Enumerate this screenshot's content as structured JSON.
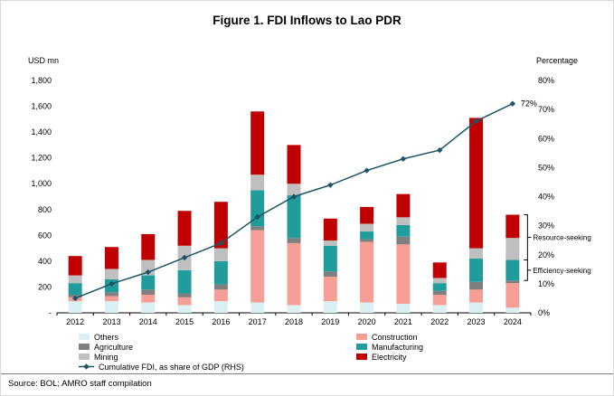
{
  "figure": {
    "title": "Figure 1. FDI Inflows to Lao PDR",
    "source": "Source: BOL; AMRO staff compilation"
  },
  "annotations": {
    "line_end_label": "72%",
    "brackets": [
      {
        "label": "Resource-seeking",
        "value_from": 410,
        "value_to": 760
      },
      {
        "label": "Efficiency-seeking",
        "value_from": 250,
        "value_to": 410
      }
    ]
  },
  "legend": {
    "columns": [
      {
        "items": [
          {
            "label": "Others"
          },
          {
            "label": "Agriculture"
          },
          {
            "label": "Mining"
          },
          {
            "label": "Cumulative FDI, as share of GDP (RHS)",
            "marker": "line"
          }
        ]
      },
      {
        "items": [
          {
            "label": "Construction"
          },
          {
            "label": "Manufacturing"
          },
          {
            "label": "Electricity"
          }
        ]
      }
    ]
  },
  "chart_data": {
    "type": "bar",
    "subtype": "stacked-bars-with-line",
    "title": "Figure 1. FDI Inflows to Lao PDR",
    "categories": [
      "2012",
      "2013",
      "2014",
      "2015",
      "2016",
      "2017",
      "2018",
      "2019",
      "2020",
      "2021",
      "2022",
      "2023",
      "2024"
    ],
    "series": [
      {
        "name": "Others",
        "color": "#daf0f2",
        "values": [
          90,
          90,
          80,
          60,
          90,
          80,
          60,
          90,
          80,
          70,
          60,
          80,
          40
        ]
      },
      {
        "name": "Construction",
        "color": "#f79e96",
        "values": [
          30,
          40,
          60,
          60,
          90,
          560,
          480,
          190,
          470,
          460,
          80,
          100,
          190
        ]
      },
      {
        "name": "Agriculture",
        "color": "#7f7f7f",
        "values": [
          20,
          30,
          40,
          30,
          40,
          30,
          40,
          40,
          20,
          60,
          30,
          60,
          20
        ]
      },
      {
        "name": "Manufacturing",
        "color": "#219c9c",
        "values": [
          90,
          100,
          110,
          180,
          180,
          280,
          330,
          200,
          60,
          90,
          60,
          180,
          160
        ]
      },
      {
        "name": "Mining",
        "color": "#bfbfbf",
        "values": [
          60,
          80,
          120,
          190,
          100,
          120,
          90,
          40,
          60,
          60,
          40,
          80,
          170
        ]
      },
      {
        "name": "Electricity",
        "color": "#c00000",
        "values": [
          150,
          170,
          200,
          270,
          360,
          490,
          300,
          170,
          130,
          180,
          120,
          1010,
          180
        ]
      }
    ],
    "line_series": {
      "name": "Cumulative FDI, as share of GDP (RHS)",
      "color": "#1d5566",
      "axis": "right",
      "values": [
        5,
        10,
        14,
        19,
        24,
        33,
        40,
        44,
        49,
        53,
        56,
        66,
        72
      ]
    },
    "left_axis": {
      "label": "USD mn",
      "min": 0,
      "max": 1800,
      "step": 200,
      "ticks": [
        "-",
        "200",
        "400",
        "600",
        "800",
        "1,000",
        "1,200",
        "1,400",
        "1,600",
        "1,800"
      ]
    },
    "right_axis": {
      "label": "Percentage",
      "min": 0,
      "max": 80,
      "step": 10,
      "ticks": [
        "0%",
        "10%",
        "20%",
        "30%",
        "40%",
        "50%",
        "60%",
        "70%",
        "80%"
      ]
    },
    "grid": false,
    "legend_position": "bottom"
  }
}
